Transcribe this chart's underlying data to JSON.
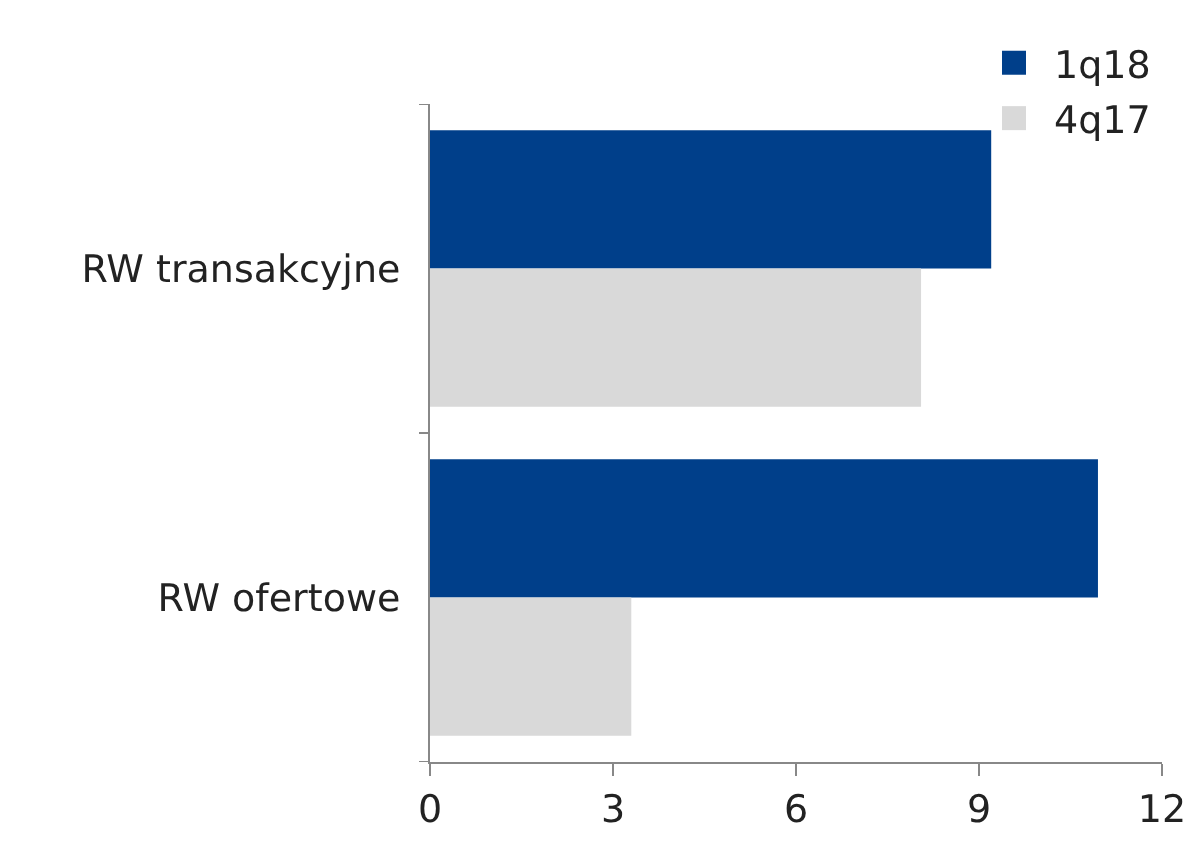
{
  "chart_data": {
    "type": "bar",
    "orientation": "horizontal",
    "categories": [
      "RW transakcyjne",
      "RW ofertowe"
    ],
    "series": [
      {
        "name": "1q18",
        "color": "#003f8a",
        "values": [
          9.2,
          10.95
        ]
      },
      {
        "name": "4q17",
        "color": "#d9d9d9",
        "values": [
          8.05,
          3.3
        ]
      }
    ],
    "xlim": [
      0,
      12
    ],
    "xticks": [
      0,
      3,
      6,
      9,
      12
    ],
    "grid": false,
    "legend": "top right"
  }
}
